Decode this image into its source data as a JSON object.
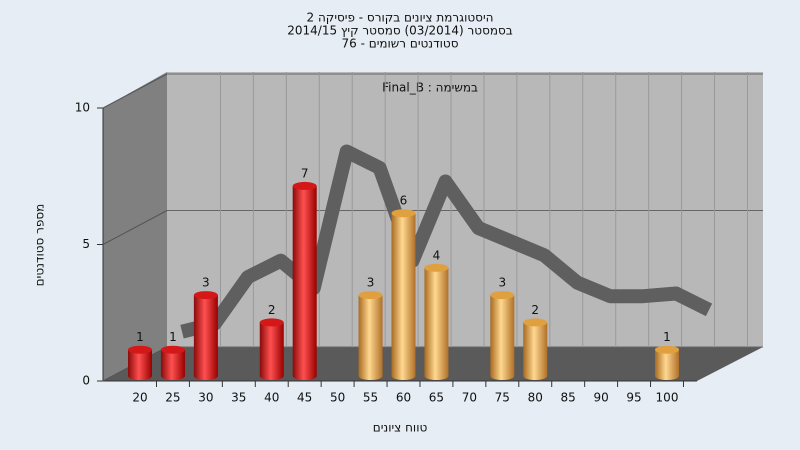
{
  "chart_data": {
    "type": "bar3d",
    "title": "היסטוגרמת ציונים בקורס - פיסיקה 2",
    "subtitle": "בסמסטר  (03/2014)  סמסטר קיץ 2014/15",
    "subtitle2": "סטודנטים רשומים - 76",
    "annotation": "Final_B : במשימה",
    "x_label": "טווח ציונים",
    "y_label": "מספר סטודנטים",
    "categories": [
      "20",
      "25",
      "30",
      "35",
      "40",
      "45",
      "50",
      "55",
      "60",
      "65",
      "70",
      "75",
      "80",
      "85",
      "90",
      "95",
      "100"
    ],
    "values": [
      1,
      1,
      3,
      0,
      2,
      7,
      0,
      3,
      6,
      4,
      0,
      3,
      2,
      0,
      0,
      0,
      1
    ],
    "colors": [
      "#d41818",
      "#d41818",
      "#d41818",
      "#d41818",
      "#d41818",
      "#d41818",
      "#d41818",
      "#e0a040",
      "#e0a040",
      "#e0a040",
      "#e0a040",
      "#e0a040",
      "#e0a040",
      "#e0a040",
      "#e0a040",
      "#e0a040",
      "#e0a040"
    ],
    "trend": [
      1,
      1.3,
      3,
      3.6,
      2.6,
      7.6,
      7,
      3.6,
      6.5,
      4.8,
      4.3,
      3.8,
      2.8,
      2.3,
      2.3,
      2.4,
      1.8
    ],
    "trend_color": "#5f5f5f",
    "ylim": [
      0,
      10
    ],
    "yticks": [
      0,
      5,
      10
    ],
    "grid": true
  }
}
